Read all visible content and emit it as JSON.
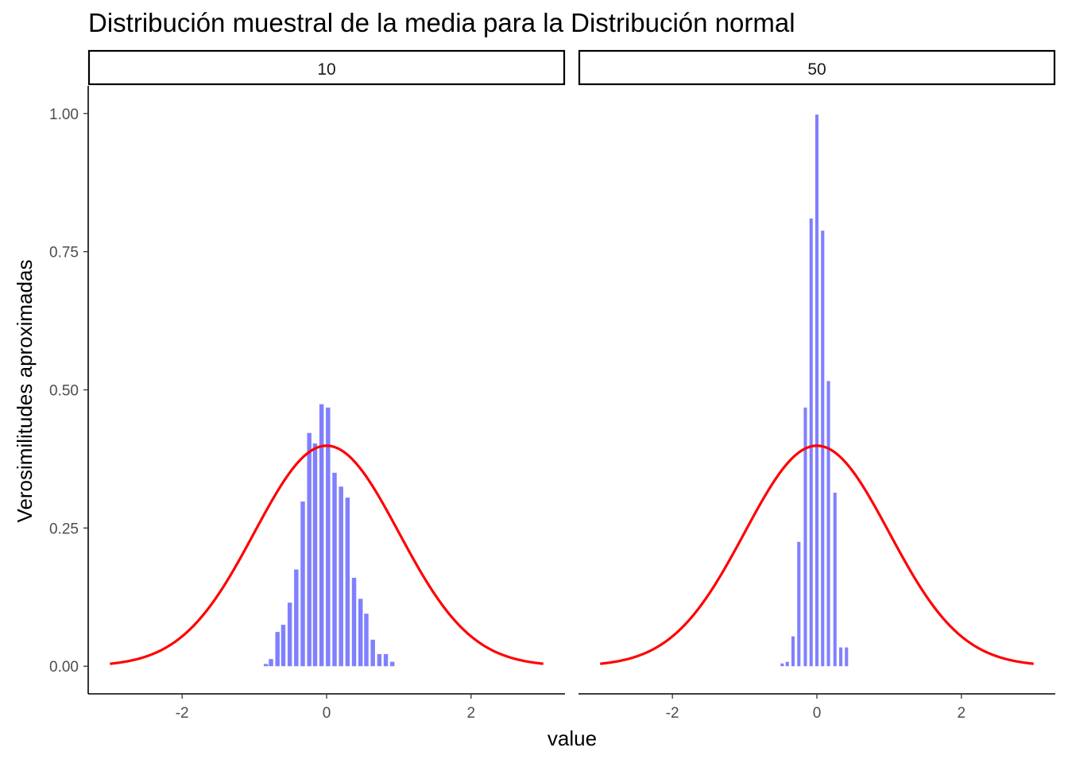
{
  "chart_data": {
    "type": "bar",
    "title": "Distribución muestral de la media para la Distribución normal",
    "xlabel": "value",
    "ylabel": "Verosimilitudes aproximadas",
    "xlim": [
      -3.3,
      3.3
    ],
    "ylim": [
      -0.05,
      1.05
    ],
    "x_ticks": [
      -2,
      0,
      2
    ],
    "x_tick_labels": [
      "-2",
      "0",
      "2"
    ],
    "y_ticks": [
      0,
      0.25,
      0.5,
      0.75,
      1.0
    ],
    "y_tick_labels": [
      "0.00",
      "0.25",
      "0.50",
      "0.75",
      "1.00"
    ],
    "grid": false,
    "bar_color": "#8080ff",
    "curve_color": "#ff0000",
    "curve": {
      "type": "normal density",
      "mean": 0,
      "sd": 1,
      "x_range": [
        -3,
        3
      ]
    },
    "panels": [
      {
        "label": "10",
        "bar_width": 0.06,
        "bars": [
          {
            "x": -0.84,
            "y": 0.004
          },
          {
            "x": -0.77,
            "y": 0.013
          },
          {
            "x": -0.68,
            "y": 0.062
          },
          {
            "x": -0.6,
            "y": 0.075
          },
          {
            "x": -0.51,
            "y": 0.115
          },
          {
            "x": -0.42,
            "y": 0.175
          },
          {
            "x": -0.33,
            "y": 0.298
          },
          {
            "x": -0.24,
            "y": 0.422
          },
          {
            "x": -0.16,
            "y": 0.403
          },
          {
            "x": -0.07,
            "y": 0.474
          },
          {
            "x": 0.02,
            "y": 0.468
          },
          {
            "x": 0.11,
            "y": 0.35
          },
          {
            "x": 0.2,
            "y": 0.325
          },
          {
            "x": 0.29,
            "y": 0.305
          },
          {
            "x": 0.38,
            "y": 0.16
          },
          {
            "x": 0.47,
            "y": 0.122
          },
          {
            "x": 0.55,
            "y": 0.095
          },
          {
            "x": 0.64,
            "y": 0.048
          },
          {
            "x": 0.73,
            "y": 0.022
          },
          {
            "x": 0.82,
            "y": 0.022
          },
          {
            "x": 0.91,
            "y": 0.008
          }
        ]
      },
      {
        "label": "50",
        "bar_width": 0.045,
        "bars": [
          {
            "x": -0.48,
            "y": 0.005
          },
          {
            "x": -0.41,
            "y": 0.008
          },
          {
            "x": -0.33,
            "y": 0.054
          },
          {
            "x": -0.25,
            "y": 0.225
          },
          {
            "x": -0.16,
            "y": 0.468
          },
          {
            "x": -0.08,
            "y": 0.81
          },
          {
            "x": 0.0,
            "y": 0.998
          },
          {
            "x": 0.08,
            "y": 0.788
          },
          {
            "x": 0.16,
            "y": 0.516
          },
          {
            "x": 0.25,
            "y": 0.314
          },
          {
            "x": 0.33,
            "y": 0.034
          },
          {
            "x": 0.41,
            "y": 0.034
          }
        ]
      }
    ]
  }
}
